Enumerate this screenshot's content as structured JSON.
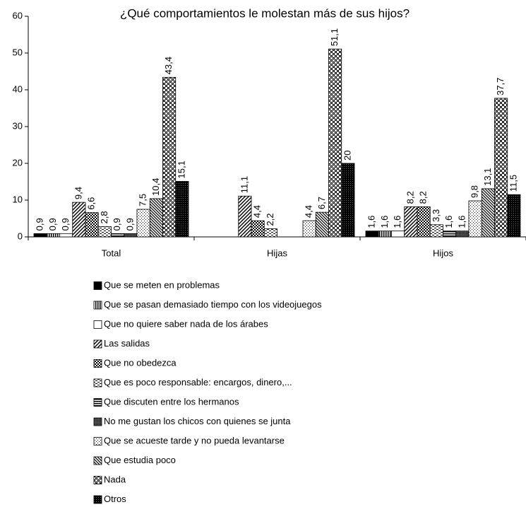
{
  "chart_data": {
    "type": "bar",
    "title": "¿Qué comportamientos le molestan más de sus hijos?",
    "categories": [
      "Total",
      "Hijas",
      "Hijos"
    ],
    "ylim": [
      0,
      60
    ],
    "yticks": [
      0,
      10,
      20,
      30,
      40,
      50,
      60
    ],
    "legend": "bottom",
    "series": [
      {
        "name": "Que se meten en problemas",
        "color": "#000000",
        "pattern": "solid",
        "values": [
          0.9,
          null,
          1.6
        ],
        "value_labels": [
          "0,9",
          null,
          "1,6"
        ]
      },
      {
        "name": "Que se pasan demasiado tiempo con los videojuegos",
        "color": "#000000",
        "pattern": "vertical",
        "values": [
          0.9,
          null,
          1.6
        ],
        "value_labels": [
          "0,9",
          null,
          "1,6"
        ]
      },
      {
        "name": "Que no quiere saber nada de los árabes",
        "color": "#000000",
        "pattern": "empty",
        "values": [
          0.9,
          null,
          1.6
        ],
        "value_labels": [
          "0,9",
          null,
          "1,6"
        ]
      },
      {
        "name": "Las salidas",
        "color": "#000000",
        "pattern": "diagonal",
        "values": [
          9.4,
          11.1,
          8.2
        ],
        "value_labels": [
          "9,4",
          "11,1",
          "8,2"
        ]
      },
      {
        "name": "Que no obedezca",
        "color": "#000000",
        "pattern": "checker",
        "values": [
          6.6,
          4.4,
          8.2
        ],
        "value_labels": [
          "6,6",
          "4,4",
          "8,2"
        ]
      },
      {
        "name": "Que es poco responsable: encargos, dinero,...",
        "color": "#000000",
        "pattern": "dashed",
        "values": [
          2.8,
          2.2,
          3.3
        ],
        "value_labels": [
          "2,8",
          "2,2",
          "3,3"
        ]
      },
      {
        "name": "Que discuten entre los hermanos",
        "color": "#000000",
        "pattern": "horizontal",
        "values": [
          0.9,
          null,
          1.6
        ],
        "value_labels": [
          "0,9",
          null,
          "1,6"
        ]
      },
      {
        "name": "No me gustan los chicos con quienes se junta",
        "color": "#000000",
        "pattern": "dense",
        "values": [
          0.9,
          null,
          1.6
        ],
        "value_labels": [
          "0,9",
          null,
          "1,6"
        ]
      },
      {
        "name": "Que se acueste tarde y no pueda levantarse",
        "color": "#000000",
        "pattern": "dots",
        "values": [
          7.5,
          4.4,
          9.8
        ],
        "value_labels": [
          "7,5",
          "4,4",
          "9,8"
        ]
      },
      {
        "name": "Que estudia poco",
        "color": "#000000",
        "pattern": "diagonal2",
        "values": [
          10.4,
          6.7,
          13.1
        ],
        "value_labels": [
          "10,4",
          "6,7",
          "13,1"
        ]
      },
      {
        "name": "Nada",
        "color": "#000000",
        "pattern": "bigchecker",
        "values": [
          43.4,
          51.1,
          37.7
        ],
        "value_labels": [
          "43,4",
          "51,1",
          "37,7"
        ]
      },
      {
        "name": "Otros",
        "color": "#000000",
        "pattern": "dark",
        "values": [
          15.1,
          20,
          11.5
        ],
        "value_labels": [
          "15,1",
          "20",
          "11,5"
        ]
      }
    ]
  }
}
